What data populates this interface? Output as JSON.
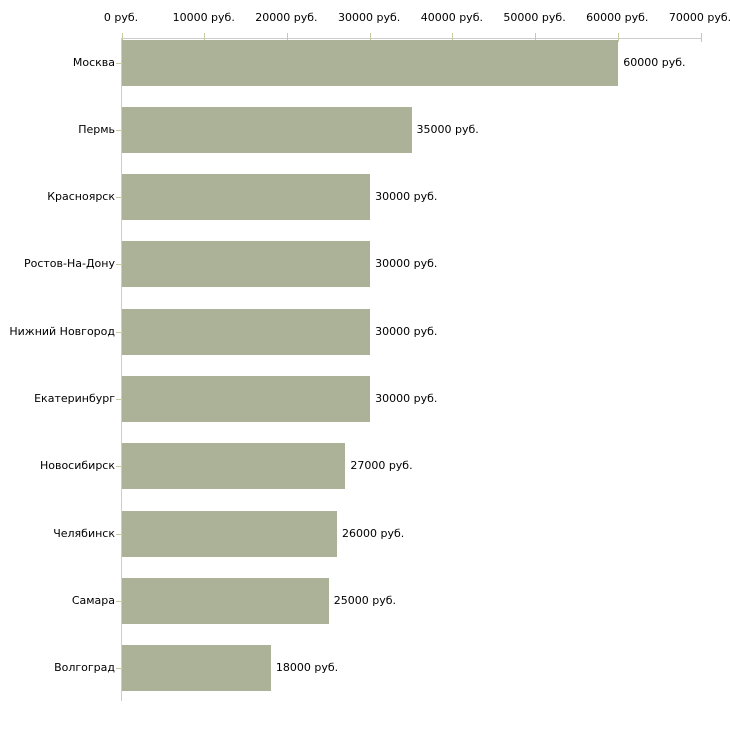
{
  "chart_data": {
    "type": "bar",
    "orientation": "horizontal",
    "title": "",
    "xlabel": "",
    "ylabel": "",
    "categories": [
      "Москва",
      "Пермь",
      "Красноярск",
      "Ростов-На-Дону",
      "Нижний Новгород",
      "Екатеринбург",
      "Новосибирск",
      "Челябинск",
      "Самара",
      "Волгоград"
    ],
    "values": [
      60000,
      35000,
      30000,
      30000,
      30000,
      30000,
      27000,
      26000,
      25000,
      18000
    ],
    "value_labels": [
      "60000 руб.",
      "35000 руб.",
      "30000 руб.",
      "30000 руб.",
      "30000 руб.",
      "30000 руб.",
      "27000 руб.",
      "26000 руб.",
      "25000 руб.",
      "18000 руб."
    ],
    "x_ticks": [
      0,
      10000,
      20000,
      30000,
      40000,
      50000,
      60000,
      70000
    ],
    "x_tick_labels": [
      "0 руб.",
      "10000 руб.",
      "20000 руб.",
      "30000 руб.",
      "40000 руб.",
      "50000 руб.",
      "60000 руб.",
      "70000 руб."
    ],
    "xlim": [
      0,
      70000
    ],
    "grid": false,
    "legend": null,
    "colors": {
      "bar": "#abb298",
      "axis_line": "#cccccc",
      "tick": "#c6c9a4",
      "text": "#000000",
      "background": "#ffffff"
    }
  }
}
